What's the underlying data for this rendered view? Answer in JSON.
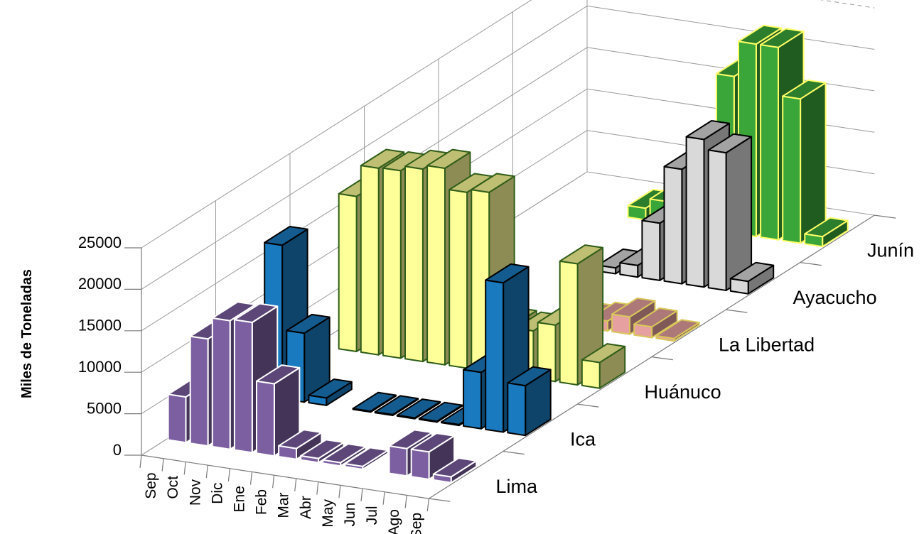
{
  "chart_data": {
    "type": "bar",
    "subtype": "3d-column",
    "title": "",
    "ylabel": "Miles de Toneladas",
    "xlabel": "",
    "ylim": [
      0,
      25000
    ],
    "yticks": [
      0,
      5000,
      10000,
      15000,
      20000,
      25000
    ],
    "categories": [
      "Sep",
      "Oct",
      "Nov",
      "Dic",
      "Ene",
      "Feb",
      "Mar",
      "Abr",
      "May",
      "Jun",
      "Jul",
      "Ago",
      "Sep"
    ],
    "grid": true,
    "series": [
      {
        "name": "Lima",
        "color": "#7b5fa0",
        "edge": "#ffffff",
        "values": [
          5500,
          12900,
          15500,
          15700,
          8700,
          1300,
          500,
          400,
          350,
          null,
          3300,
          3300,
          700
        ]
      },
      {
        "name": "Ica",
        "color": "#1a7ac0",
        "edge": "#000000",
        "values": [
          null,
          18500,
          8300,
          900,
          null,
          100,
          100,
          100,
          100,
          100,
          6800,
          18000,
          6000
        ]
      },
      {
        "name": "Huánuco",
        "color": "#ffff99",
        "edge": "#2f5d18",
        "values": [
          null,
          18700,
          22500,
          22600,
          23200,
          23700,
          21200,
          21600,
          5800,
          5700,
          6800,
          14600,
          3100
        ]
      },
      {
        "name": "La Libertad",
        "color": "#e6a0a0",
        "edge": "#d8c85a",
        "values": [
          null,
          null,
          null,
          null,
          null,
          null,
          null,
          400,
          800,
          1200,
          2100,
          1300,
          300
        ]
      },
      {
        "name": "Ayacucho",
        "color": "#d9d9d9",
        "edge": "#000000",
        "values": [
          null,
          null,
          null,
          null,
          null,
          null,
          700,
          1400,
          6900,
          13800,
          17800,
          16600,
          1500
        ]
      },
      {
        "name": "Junín",
        "color": "#3aa63a",
        "edge": "#ffff66",
        "values": [
          null,
          null,
          null,
          null,
          1400,
          2600,
          5400,
          8000,
          18900,
          23200,
          23200,
          17400,
          1200
        ]
      }
    ]
  }
}
